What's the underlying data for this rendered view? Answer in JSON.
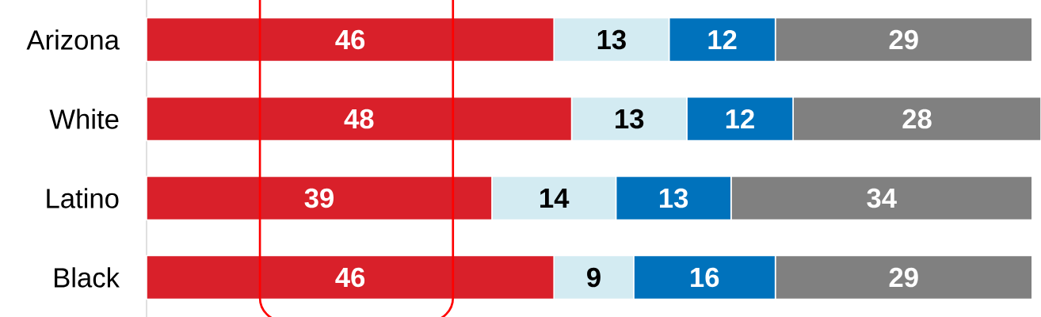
{
  "chart_data": {
    "type": "bar",
    "orientation": "horizontal",
    "stacked": true,
    "data_labels": true,
    "categories": [
      "Arizona",
      "White",
      "Latino",
      "Black"
    ],
    "series": [
      {
        "color": "#d9202a",
        "values": [
          46,
          48,
          39,
          46
        ]
      },
      {
        "color": "#d3ebf2",
        "values": [
          13,
          13,
          14,
          9
        ]
      },
      {
        "color": "#0072bc",
        "values": [
          12,
          12,
          13,
          16
        ]
      },
      {
        "color": "#808080",
        "values": [
          29,
          28,
          34,
          29
        ]
      }
    ]
  }
}
